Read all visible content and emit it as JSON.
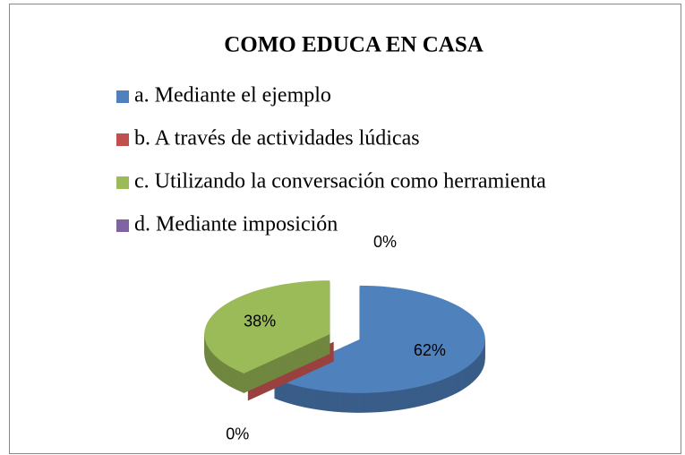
{
  "chart_data": {
    "type": "pie",
    "title": "COMO EDUCA EN CASA",
    "categories": [
      "a. Mediante el ejemplo",
      "b. A través de actividades lúdicas",
      "c. Utilizando la conversación como herramienta",
      "d. Mediante imposición"
    ],
    "values": [
      62,
      0,
      38,
      0
    ],
    "value_labels": [
      "62%",
      "0%",
      "38%",
      "0%"
    ],
    "colors": [
      "#4f81bd",
      "#c0504d",
      "#9bbb59",
      "#8064a2"
    ],
    "legend": "top"
  }
}
